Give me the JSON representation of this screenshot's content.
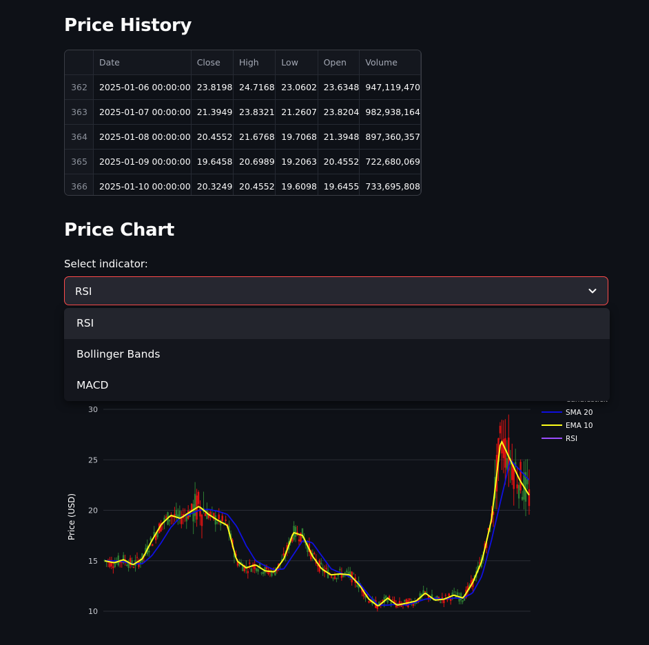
{
  "sections": {
    "history_title": "Price History",
    "chart_title": "Price Chart"
  },
  "table": {
    "columns": [
      "",
      "Date",
      "Close",
      "High",
      "Low",
      "Open",
      "Volume"
    ],
    "rows": [
      [
        "362",
        "2025-01-06 00:00:00",
        "23.8198",
        "24.7168",
        "23.0602",
        "23.6348",
        "947,119,470"
      ],
      [
        "363",
        "2025-01-07 00:00:00",
        "21.3949",
        "23.8321",
        "21.2607",
        "23.8204",
        "982,938,164"
      ],
      [
        "364",
        "2025-01-08 00:00:00",
        "20.4552",
        "21.6768",
        "19.7068",
        "21.3948",
        "897,360,357"
      ],
      [
        "365",
        "2025-01-09 00:00:00",
        "19.6458",
        "20.6989",
        "19.2063",
        "20.4552",
        "722,680,069"
      ],
      [
        "366",
        "2025-01-10 00:00:00",
        "20.3249",
        "20.4552",
        "19.6098",
        "19.6455",
        "733,695,808"
      ]
    ]
  },
  "indicator_select": {
    "label": "Select indicator:",
    "value": "RSI",
    "options": [
      "RSI",
      "Bollinger Bands",
      "MACD"
    ],
    "accent_color": "#ff4b4b"
  },
  "chart_data": {
    "type": "line",
    "ylabel": "Price (USD)",
    "yticks": [
      10,
      15,
      20,
      25,
      30
    ],
    "ylim": [
      8,
      31
    ],
    "legend_position": "top-right",
    "series": [
      {
        "name": "Candlestick",
        "color": "#2e7d32"
      },
      {
        "name": "SMA 20",
        "color": "#1010e0"
      },
      {
        "name": "EMA 10",
        "color": "#ffff1a"
      },
      {
        "name": "RSI",
        "color": "#9b4dff"
      }
    ],
    "ema10_approx": [
      15.0,
      14.8,
      15.1,
      14.6,
      15.2,
      17.0,
      18.6,
      19.5,
      19.2,
      19.8,
      20.4,
      19.6,
      19.0,
      18.5,
      15.0,
      14.3,
      14.6,
      14.0,
      13.9,
      15.2,
      17.8,
      17.5,
      15.5,
      14.2,
      13.6,
      13.7,
      13.6,
      12.6,
      11.2,
      10.5,
      11.3,
      10.6,
      10.8,
      11.0,
      11.8,
      11.1,
      11.2,
      11.6,
      11.3,
      12.8,
      15.0,
      19.0,
      27.0,
      25.0,
      23.0,
      21.5
    ],
    "sma20_approx": [
      15.0,
      15.0,
      14.9,
      14.7,
      14.7,
      15.5,
      16.8,
      18.3,
      19.3,
      19.6,
      20.0,
      20.1,
      19.9,
      19.6,
      18.4,
      16.5,
      15.0,
      14.5,
      14.1,
      14.2,
      15.6,
      17.0,
      16.8,
      15.5,
      14.2,
      13.8,
      13.4,
      12.8,
      11.6,
      10.6,
      10.6,
      10.7,
      10.6,
      10.9,
      11.2,
      11.3,
      11.2,
      11.3,
      11.3,
      11.8,
      13.5,
      17.0,
      21.0,
      25.0,
      24.0,
      23.0
    ]
  }
}
